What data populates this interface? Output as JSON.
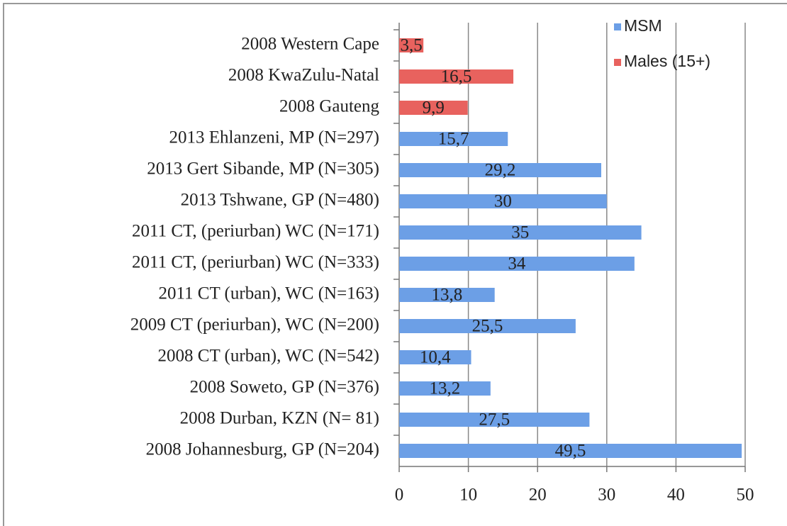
{
  "chart_data": {
    "type": "bar",
    "orientation": "horizontal",
    "categories": [
      "2008 Western Cape",
      "2008 KwaZulu-Natal",
      "2008 Gauteng",
      "2013 Ehlanzeni, MP (N=297)",
      "2013 Gert Sibande, MP (N=305)",
      "2013 Tshwane, GP (N=480)",
      "2011 CT, (periurban) WC (N=171)",
      "2011 CT, (periurban) WC (N=333)",
      "2011 CT (urban), WC  (N=163)",
      "2009 CT (periurban), WC (N=200)",
      "2008 CT (urban), WC (N=542)",
      "2008 Soweto, GP (N=376)",
      "2008 Durban, KZN (N= 81)",
      "2008 Johannesburg, GP (N=204)"
    ],
    "series": [
      {
        "name": "MSM",
        "color": "#6c9fe6",
        "values": [
          null,
          null,
          null,
          15.7,
          29.2,
          30,
          35,
          34,
          13.8,
          25.5,
          10.4,
          13.2,
          27.5,
          49.5
        ],
        "value_labels": [
          null,
          null,
          null,
          "15,7",
          "29,2",
          "30",
          "35",
          "34",
          "13,8",
          "25,5",
          "10,4",
          "13,2",
          "27,5",
          "49,5"
        ]
      },
      {
        "name": "Males (15+)",
        "color": "#e8625e",
        "values": [
          3.5,
          16.5,
          9.9,
          null,
          null,
          null,
          null,
          null,
          null,
          null,
          null,
          null,
          null,
          null
        ],
        "value_labels": [
          "3,5",
          "16,5",
          "9,9",
          null,
          null,
          null,
          null,
          null,
          null,
          null,
          null,
          null,
          null,
          null
        ]
      }
    ],
    "xlim": [
      0,
      50
    ],
    "xticks": [
      0,
      10,
      20,
      30,
      40,
      50
    ],
    "grid": true,
    "legend": "top-right"
  }
}
